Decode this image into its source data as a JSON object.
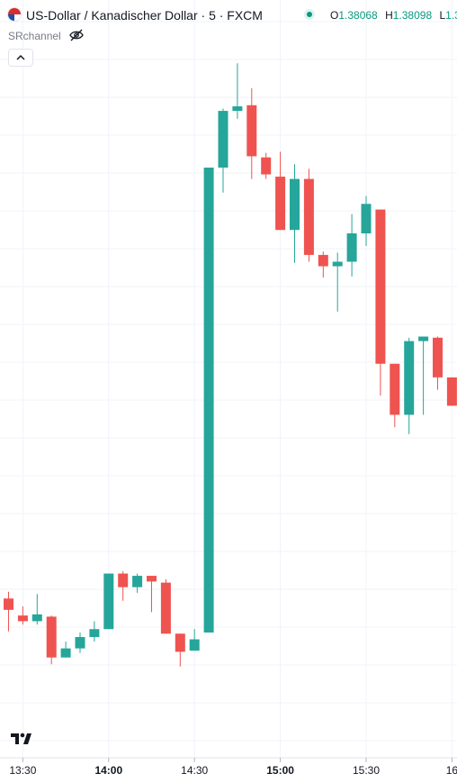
{
  "header": {
    "symbol_title": "US-Dollar / Kanadischer Dollar · 5 · FXCM",
    "ohlc": [
      {
        "label": "O",
        "value": "1.38068"
      },
      {
        "label": "H",
        "value": "1.38098"
      },
      {
        "label": "L",
        "value": "1.3"
      }
    ],
    "indicator_name": "SRchannel"
  },
  "colors": {
    "up": "#26a69a",
    "down": "#ef5350",
    "grid": "#f0f3fa",
    "axis_text": "#131722"
  },
  "chart_data": {
    "type": "candlestick",
    "interval_minutes": 5,
    "x_tick_labels": [
      "13:30",
      "14:00",
      "14:30",
      "15:00",
      "15:30",
      "16"
    ],
    "grid": true,
    "candles": [
      {
        "time": "13:25",
        "o": 1.377,
        "h": 1.37706,
        "l": 1.37671,
        "c": 1.3769
      },
      {
        "time": "13:30",
        "o": 1.37685,
        "h": 1.37693,
        "l": 1.37677,
        "c": 1.3768
      },
      {
        "time": "13:35",
        "o": 1.3768,
        "h": 1.37704,
        "l": 1.37677,
        "c": 1.37686
      },
      {
        "time": "13:40",
        "o": 1.37684,
        "h": 1.37685,
        "l": 1.37642,
        "c": 1.37648
      },
      {
        "time": "13:45",
        "o": 1.37648,
        "h": 1.37662,
        "l": 1.37648,
        "c": 1.37656
      },
      {
        "time": "13:50",
        "o": 1.37656,
        "h": 1.3767,
        "l": 1.37652,
        "c": 1.37666
      },
      {
        "time": "13:55",
        "o": 1.37666,
        "h": 1.3768,
        "l": 1.37662,
        "c": 1.37673
      },
      {
        "time": "14:00",
        "o": 1.37673,
        "h": 1.37722,
        "l": 1.37673,
        "c": 1.37722
      },
      {
        "time": "14:05",
        "o": 1.37722,
        "h": 1.37724,
        "l": 1.37698,
        "c": 1.3771
      },
      {
        "time": "14:10",
        "o": 1.3771,
        "h": 1.37722,
        "l": 1.37705,
        "c": 1.3772
      },
      {
        "time": "14:15",
        "o": 1.3772,
        "h": 1.3772,
        "l": 1.37688,
        "c": 1.37715
      },
      {
        "time": "14:20",
        "o": 1.37714,
        "h": 1.37717,
        "l": 1.37669,
        "c": 1.37669
      },
      {
        "time": "14:25",
        "o": 1.37669,
        "h": 1.37669,
        "l": 1.3764,
        "c": 1.37653
      },
      {
        "time": "14:30",
        "o": 1.37654,
        "h": 1.37673,
        "l": 1.37654,
        "c": 1.37664
      },
      {
        "time": "14:35",
        "o": 1.3767,
        "h": 1.3808,
        "l": 1.3767,
        "c": 1.3808
      },
      {
        "time": "14:40",
        "o": 1.3808,
        "h": 1.38132,
        "l": 1.38058,
        "c": 1.3813
      },
      {
        "time": "14:45",
        "o": 1.3813,
        "h": 1.38172,
        "l": 1.38123,
        "c": 1.38134
      },
      {
        "time": "14:50",
        "o": 1.38135,
        "h": 1.3815,
        "l": 1.3807,
        "c": 1.3809
      },
      {
        "time": "14:55",
        "o": 1.38089,
        "h": 1.38093,
        "l": 1.3807,
        "c": 1.38074
      },
      {
        "time": "15:00",
        "o": 1.38072,
        "h": 1.38094,
        "l": 1.38025,
        "c": 1.38025
      },
      {
        "time": "15:05",
        "o": 1.38025,
        "h": 1.38083,
        "l": 1.37996,
        "c": 1.3807
      },
      {
        "time": "15:10",
        "o": 1.3807,
        "h": 1.38079,
        "l": 1.37997,
        "c": 1.38003
      },
      {
        "time": "15:15",
        "o": 1.38003,
        "h": 1.38006,
        "l": 1.37983,
        "c": 1.37993
      },
      {
        "time": "15:20",
        "o": 1.37993,
        "h": 1.38005,
        "l": 1.37953,
        "c": 1.37997
      },
      {
        "time": "15:25",
        "o": 1.37997,
        "h": 1.38039,
        "l": 1.37984,
        "c": 1.38022
      },
      {
        "time": "15:30",
        "o": 1.38022,
        "h": 1.38055,
        "l": 1.38011,
        "c": 1.38048
      },
      {
        "time": "15:35",
        "o": 1.38043,
        "h": 1.38043,
        "l": 1.37879,
        "c": 1.37907
      },
      {
        "time": "15:40",
        "o": 1.37907,
        "h": 1.37907,
        "l": 1.37851,
        "c": 1.37862
      },
      {
        "time": "15:45",
        "o": 1.37862,
        "h": 1.3793,
        "l": 1.37845,
        "c": 1.37927
      },
      {
        "time": "15:50",
        "o": 1.37927,
        "h": 1.37931,
        "l": 1.37862,
        "c": 1.37931
      },
      {
        "time": "15:55",
        "o": 1.3793,
        "h": 1.37931,
        "l": 1.37884,
        "c": 1.37895
      },
      {
        "time": "16:00",
        "o": 1.37895,
        "h": 1.37895,
        "l": 1.3787,
        "c": 1.3787
      }
    ]
  }
}
